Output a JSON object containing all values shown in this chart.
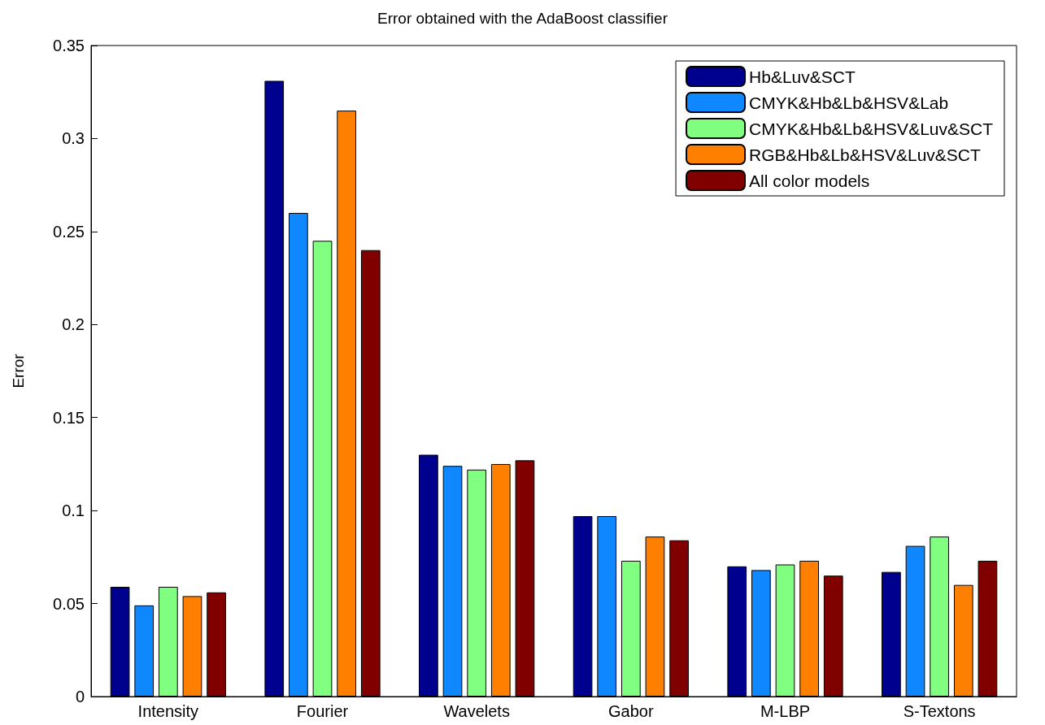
{
  "chart_data": {
    "type": "bar",
    "title": "Error obtained with the AdaBoost classifier",
    "ylabel": "Error",
    "categories": [
      "Intensity",
      "Fourier",
      "Wavelets",
      "Gabor",
      "M-LBP",
      "S-Textons"
    ],
    "series": [
      {
        "name": "Hb&Luv&SCT",
        "color": "#00008f",
        "values": [
          0.059,
          0.331,
          0.13,
          0.097,
          0.07,
          0.067
        ]
      },
      {
        "name": "CMYK&Hb&Lb&HSV&Lab",
        "color": "#0f87ff",
        "values": [
          0.049,
          0.26,
          0.124,
          0.097,
          0.068,
          0.081
        ]
      },
      {
        "name": "CMYK&Hb&Lb&HSV&Luv&SCT",
        "color": "#80ff80",
        "values": [
          0.059,
          0.245,
          0.122,
          0.073,
          0.071,
          0.086
        ]
      },
      {
        "name": "RGB&Hb&Lb&HSV&Luv&SCT",
        "color": "#ff8000",
        "values": [
          0.054,
          0.315,
          0.125,
          0.086,
          0.073,
          0.06
        ]
      },
      {
        "name": "All color models",
        "color": "#800000",
        "values": [
          0.056,
          0.24,
          0.127,
          0.084,
          0.065,
          0.073
        ]
      }
    ],
    "ylim": [
      0,
      0.35
    ],
    "yticks": [
      0,
      0.05,
      0.1,
      0.15,
      0.2,
      0.25,
      0.3,
      0.35
    ],
    "grid": false,
    "legend": "top right"
  }
}
